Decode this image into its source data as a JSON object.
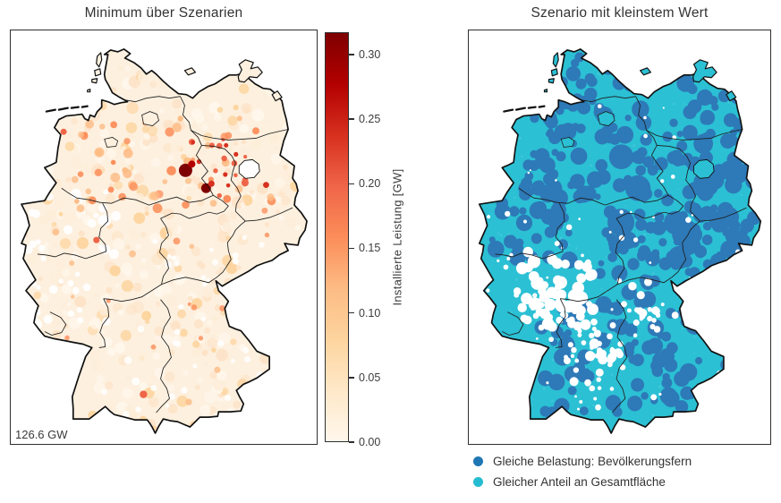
{
  "figure": {
    "left": {
      "title": "Minimum über Szenarien",
      "annotation": "126.6 GW",
      "colorbar": {
        "label": "Installierte Leistung [GW]",
        "ticks": [
          "0.00",
          "0.05",
          "0.10",
          "0.15",
          "0.20",
          "0.25",
          "0.30"
        ],
        "tick_max_value": 0.3173,
        "gradient": [
          "#fff7ec",
          "#fee8c8",
          "#fdd49e",
          "#fdbb84",
          "#fc8d59",
          "#ef6548",
          "#d7301f",
          "#b30000",
          "#7f0000"
        ]
      },
      "map_palette": {
        "base": "#fdf0df",
        "light": [
          "#fff7ec",
          "#fdeeda",
          "#fde3c8",
          "#fdd49e"
        ],
        "mid": "#fdbb84",
        "orange": "#fc8d59",
        "deep_orange": "#ef6548",
        "red": "#d7301f",
        "dark_red2": "#b30000",
        "dark_red": "#7f0000",
        "no_data": "#ffffff"
      }
    },
    "right": {
      "title": "Szenario mit kleinstem Wert",
      "legend": [
        {
          "label": "Gleiche Belastung: Bevölkerungsfern",
          "color": "#1f77b4"
        },
        {
          "label": "Gleicher Anteil an Gesamtfläche",
          "color": "#25bcd1"
        }
      ],
      "map_palette": {
        "cyan": "#2bc0d4",
        "cyan_light": "#55cdde",
        "blue": "#2e79b7",
        "no_data": "#ffffff"
      }
    },
    "border_color": "#2f2f2f",
    "outline_color": "#111111",
    "state_line_color": "#1c1c1c",
    "text_color": "#333333"
  }
}
